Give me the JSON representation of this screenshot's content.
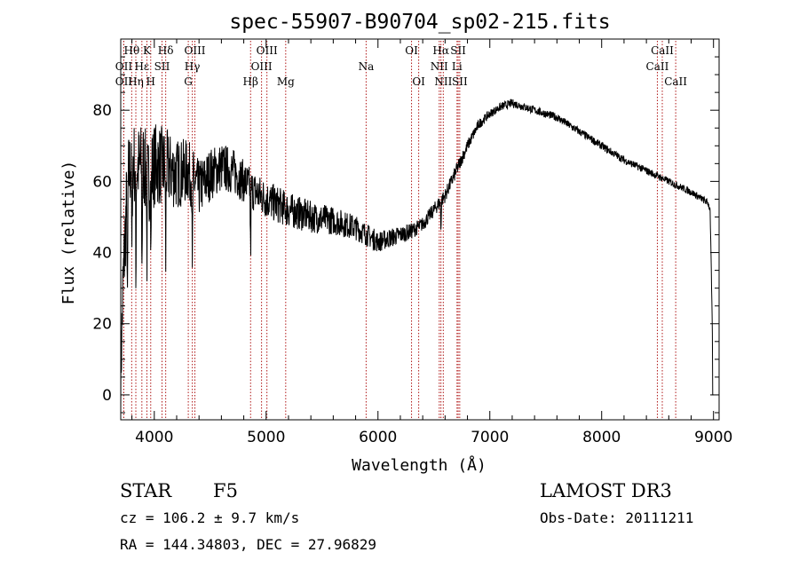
{
  "chart_data": {
    "type": "line",
    "title": "spec-55907-B90704_sp02-215.fits",
    "xlabel": "Wavelength (Å)",
    "ylabel": "Flux (relative)",
    "xlim": [
      3700,
      9050
    ],
    "ylim": [
      -7,
      100
    ],
    "xticks": [
      4000,
      5000,
      6000,
      7000,
      8000,
      9000
    ],
    "yticks": [
      0,
      20,
      40,
      60,
      80
    ],
    "continuum": {
      "x": [
        3700,
        3720,
        3760,
        3800,
        3850,
        3900,
        3950,
        4000,
        4100,
        4200,
        4300,
        4400,
        4500,
        4600,
        4700,
        4800,
        4900,
        5000,
        5200,
        5400,
        5600,
        5800,
        5900,
        6000,
        6100,
        6200,
        6300,
        6400,
        6500,
        6600,
        6700,
        6800,
        6900,
        7000,
        7100,
        7200,
        7400,
        7600,
        7800,
        8000,
        8200,
        8400,
        8600,
        8800,
        8950,
        8970,
        9000
      ],
      "y": [
        5,
        30,
        60,
        66,
        64,
        65,
        60,
        65,
        64,
        62,
        63,
        58,
        62,
        64,
        63,
        60,
        57,
        55,
        52,
        50,
        49,
        47,
        45,
        43,
        44,
        45,
        46,
        48,
        52,
        56,
        63,
        70,
        76,
        79,
        81,
        82,
        80,
        78,
        74,
        70,
        66,
        63,
        60,
        57,
        54,
        52,
        0
      ]
    },
    "noise_amplitude": {
      "x": [
        3700,
        4000,
        4400,
        4800,
        5600,
        6000,
        6400,
        6700,
        7000,
        9000
      ],
      "amp": [
        12,
        12,
        8,
        6,
        4,
        3,
        2,
        2,
        1.2,
        1
      ]
    },
    "absorption_spikes": [
      {
        "x": 3760,
        "depth": 40
      },
      {
        "x": 3800,
        "depth": 30
      },
      {
        "x": 3835,
        "depth": 35
      },
      {
        "x": 3890,
        "depth": 30
      },
      {
        "x": 3934,
        "depth": 25
      },
      {
        "x": 3970,
        "depth": 25
      },
      {
        "x": 4102,
        "depth": 28
      },
      {
        "x": 4340,
        "depth": 30
      },
      {
        "x": 4861,
        "depth": 20
      },
      {
        "x": 6563,
        "depth": 8
      }
    ],
    "lines": [
      {
        "label": "OII",
        "x": 3727,
        "row": 2
      },
      {
        "label": "OII",
        "x": 3727,
        "row": 3
      },
      {
        "label": "Hθ",
        "x": 3798,
        "row": 1
      },
      {
        "label": "Hη",
        "x": 3835,
        "row": 3
      },
      {
        "label": "Hε",
        "x": 3889,
        "row": 2
      },
      {
        "label": "K",
        "x": 3934,
        "row": 1
      },
      {
        "label": "H",
        "x": 3968,
        "row": 3
      },
      {
        "label": "SII",
        "x": 4069,
        "row": 2
      },
      {
        "label": "Hδ",
        "x": 4102,
        "row": 1
      },
      {
        "label": "OIII",
        "x": 4363,
        "row": 1
      },
      {
        "label": "Hγ",
        "x": 4340,
        "row": 2
      },
      {
        "label": "G",
        "x": 4304,
        "row": 3
      },
      {
        "label": "Hβ",
        "x": 4861,
        "row": 3
      },
      {
        "label": "OIII",
        "x": 5007,
        "row": 1
      },
      {
        "label": "OIII",
        "x": 4959,
        "row": 2
      },
      {
        "label": "Mg",
        "x": 5175,
        "row": 3
      },
      {
        "label": "Na",
        "x": 5894,
        "row": 2
      },
      {
        "label": "OI",
        "x": 6300,
        "row": 1
      },
      {
        "label": "OI",
        "x": 6364,
        "row": 3
      },
      {
        "label": "Hα",
        "x": 6563,
        "row": 1
      },
      {
        "label": "NII",
        "x": 6548,
        "row": 2
      },
      {
        "label": "NII",
        "x": 6584,
        "row": 3
      },
      {
        "label": "SII",
        "x": 6717,
        "row": 1
      },
      {
        "label": "Li",
        "x": 6707,
        "row": 2
      },
      {
        "label": "SII",
        "x": 6731,
        "row": 3
      },
      {
        "label": "CaII",
        "x": 8542,
        "row": 1
      },
      {
        "label": "CaII",
        "x": 8498,
        "row": 2
      },
      {
        "label": "CaII",
        "x": 8662,
        "row": 3
      }
    ]
  },
  "info": {
    "object_class": "STAR",
    "subclass": "F5",
    "survey": "LAMOST DR3",
    "redshift": "cz = 106.2 ± 9.7 km/s",
    "coords": "RA = 144.34803, DEC =  27.96829",
    "obs_date": "Obs-Date: 20111211"
  },
  "colors": {
    "spectrum": "#000000",
    "line_marker": "#b01818",
    "axis": "#000000",
    "background": "#ffffff"
  }
}
